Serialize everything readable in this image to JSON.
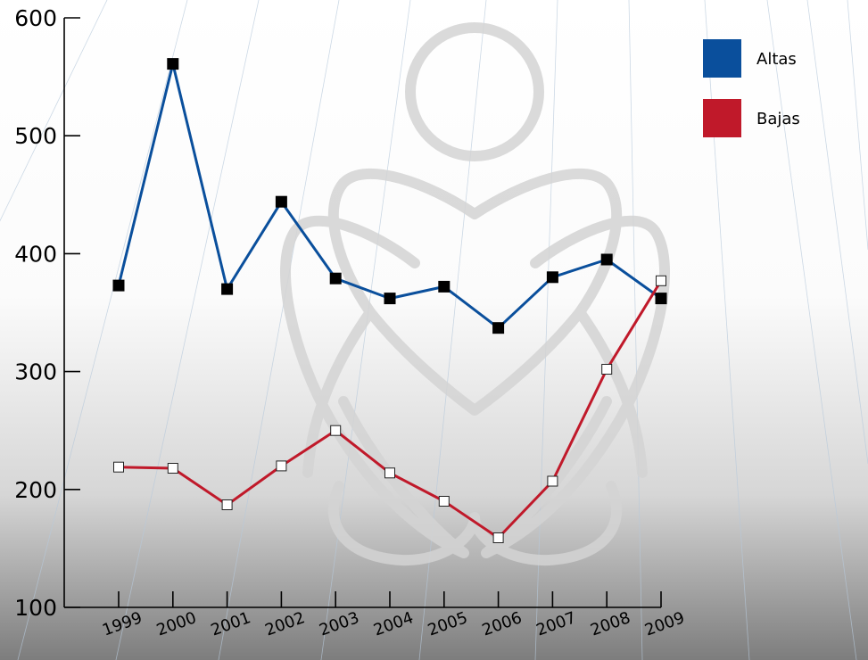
{
  "colors": {
    "altas": "#0a4f9c",
    "bajas": "#c0192a",
    "altas_marker": "#000000",
    "bajas_marker": "#ffffff",
    "axis": "#000000"
  },
  "chart_data": {
    "type": "line",
    "title": "",
    "xlabel": "",
    "ylabel": "",
    "ylim": [
      100,
      600
    ],
    "yticks": [
      100,
      200,
      300,
      400,
      500,
      600
    ],
    "grid": false,
    "legend_position": "top-right",
    "categories": [
      "1999",
      "2000",
      "2001",
      "2002",
      "2003",
      "2004",
      "2005",
      "2006",
      "2007",
      "2008",
      "2009"
    ],
    "series": [
      {
        "name": "Altas",
        "values": [
          373,
          561,
          370,
          444,
          379,
          362,
          372,
          337,
          380,
          395,
          362
        ]
      },
      {
        "name": "Bajas",
        "values": [
          219,
          218,
          187,
          220,
          250,
          214,
          190,
          159,
          207,
          302,
          377
        ]
      }
    ]
  }
}
